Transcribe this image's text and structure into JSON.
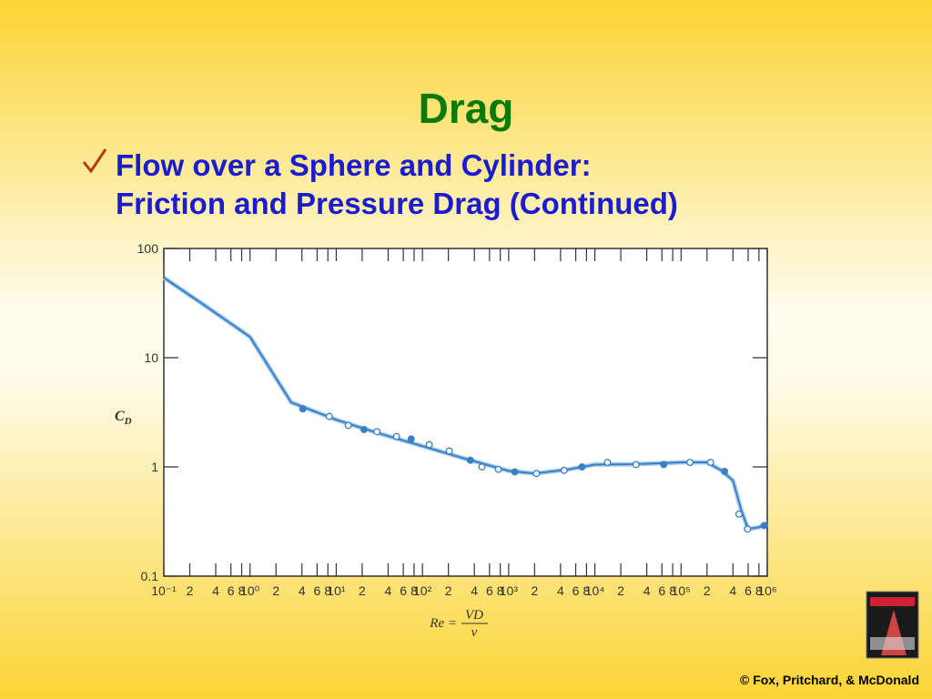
{
  "slide": {
    "title": "Drag",
    "bullet_lines": [
      "Flow over a Sphere and Cylinder:",
      "Friction and Pressure Drag (Continued)"
    ],
    "copyright": "© Fox, Pritchard, & McDonald"
  },
  "chart_data": {
    "type": "line",
    "log_x": true,
    "log_y": true,
    "grid": false,
    "color": "#3a7fc4",
    "ylabel": {
      "symbol": "C",
      "subscript": "D"
    },
    "xlabel": {
      "lhs": "Re =",
      "numerator": "VD",
      "denominator": "ν"
    },
    "xlim": [
      0.1,
      1000000
    ],
    "ylim": [
      0.1,
      100
    ],
    "yticks": [
      0.1,
      1,
      10,
      100
    ],
    "xticks": [
      {
        "value": 0.1,
        "label": "10⁻¹"
      },
      {
        "value": 0.2,
        "label": "2"
      },
      {
        "value": 0.4,
        "label": "4"
      },
      {
        "value": 0.6,
        "label": "6"
      },
      {
        "value": 0.8,
        "label": "8"
      },
      {
        "value": 1,
        "label": "10⁰"
      },
      {
        "value": 2,
        "label": "2"
      },
      {
        "value": 4,
        "label": "4"
      },
      {
        "value": 6,
        "label": "6"
      },
      {
        "value": 8,
        "label": "8"
      },
      {
        "value": 10,
        "label": "10¹"
      },
      {
        "value": 20,
        "label": "2"
      },
      {
        "value": 40,
        "label": "4"
      },
      {
        "value": 60,
        "label": "6"
      },
      {
        "value": 80,
        "label": "8"
      },
      {
        "value": 100,
        "label": "10²"
      },
      {
        "value": 200,
        "label": "2"
      },
      {
        "value": 400,
        "label": "4"
      },
      {
        "value": 600,
        "label": "6"
      },
      {
        "value": 800,
        "label": "8"
      },
      {
        "value": 1000,
        "label": "10³"
      },
      {
        "value": 2000,
        "label": "2"
      },
      {
        "value": 4000,
        "label": "4"
      },
      {
        "value": 6000,
        "label": "6"
      },
      {
        "value": 8000,
        "label": "8"
      },
      {
        "value": 10000,
        "label": "10⁴"
      },
      {
        "value": 20000,
        "label": "2"
      },
      {
        "value": 40000,
        "label": "4"
      },
      {
        "value": 60000,
        "label": "6"
      },
      {
        "value": 80000,
        "label": "8"
      },
      {
        "value": 100000,
        "label": "10⁵"
      },
      {
        "value": 200000,
        "label": "2"
      },
      {
        "value": 400000,
        "label": "4"
      },
      {
        "value": 600000,
        "label": "6"
      },
      {
        "value": 800000,
        "label": "8"
      },
      {
        "value": 1000000,
        "label": "10⁶"
      }
    ],
    "curve": {
      "x": [
        0.1,
        0.3,
        1,
        3,
        10,
        30,
        100,
        300,
        1000,
        2000,
        5000,
        10000,
        30000,
        100000,
        200000,
        300000,
        400000,
        500000,
        600000,
        800000,
        1000000
      ],
      "values": [
        54,
        30,
        15.5,
        3.9,
        2.7,
        2.05,
        1.55,
        1.2,
        0.92,
        0.87,
        0.95,
        1.05,
        1.06,
        1.1,
        1.1,
        0.92,
        0.75,
        0.4,
        0.27,
        0.28,
        0.3
      ]
    },
    "points": {
      "x": [
        4.1,
        8.3,
        13.8,
        21,
        29.7,
        50,
        74,
        120,
        205,
        360,
        490,
        760,
        1180,
        2100,
        4400,
        7100,
        14000,
        30000,
        63000,
        127000,
        220000,
        320000,
        470000,
        590000,
        920000
      ],
      "values": [
        3.4,
        2.9,
        2.4,
        2.2,
        2.1,
        1.9,
        1.8,
        1.6,
        1.4,
        1.15,
        1.0,
        0.95,
        0.9,
        0.87,
        0.93,
        1.0,
        1.1,
        1.05,
        1.05,
        1.1,
        1.1,
        0.91,
        0.37,
        0.27,
        0.29
      ]
    }
  }
}
